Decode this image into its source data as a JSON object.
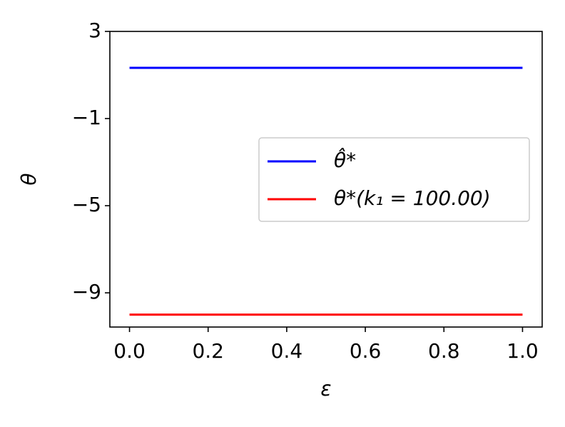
{
  "chart_data": {
    "type": "line",
    "x_label": "ε",
    "y_label": "θ",
    "x": [
      0,
      1
    ],
    "series": [
      {
        "name": "θ̂*",
        "color": "#0000ff",
        "values": [
          1.33,
          1.33
        ]
      },
      {
        "name": "θ*(k₁ = 100.00)",
        "color": "#ff0000",
        "values": [
          -10.0,
          -10.0
        ]
      }
    ],
    "xlim": [
      -0.05,
      1.05
    ],
    "xticks": [
      {
        "value": 0,
        "label": "0.0"
      },
      {
        "value": 0.2,
        "label": "0.2"
      },
      {
        "value": 0.4,
        "label": "0.4"
      },
      {
        "value": 0.6,
        "label": "0.6"
      },
      {
        "value": 0.8,
        "label": "0.8"
      },
      {
        "value": 1,
        "label": "1.0"
      }
    ],
    "ylim": [
      -10.57,
      3
    ],
    "yticks": [
      3,
      {
        "value": -1,
        "label": "−1"
      },
      {
        "value": -5,
        "label": "−5"
      },
      {
        "value": -9,
        "label": "−9"
      }
    ],
    "legend": "right",
    "grid": false
  }
}
